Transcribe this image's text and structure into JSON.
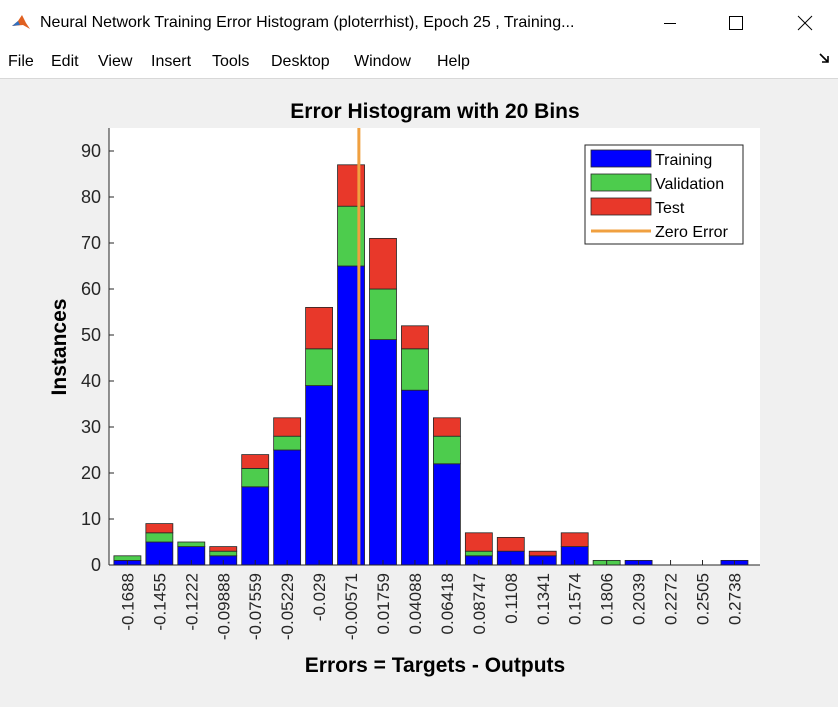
{
  "window": {
    "title": "Neural Network Training Error Histogram (ploterrhist), Epoch 25 , Training..."
  },
  "menu": {
    "items": [
      "File",
      "Edit",
      "View",
      "Insert",
      "Tools",
      "Desktop",
      "Window",
      "Help"
    ]
  },
  "colors": {
    "training": "#0000ff",
    "validation": "#4dcc4d",
    "test": "#e8382a",
    "zero_error": "#f0a040"
  },
  "chart_data": {
    "type": "bar",
    "stacked": true,
    "title": "Error Histogram with 20 Bins",
    "xlabel": "Errors = Targets - Outputs",
    "ylabel": "Instances",
    "ylim": [
      0,
      95
    ],
    "yticks": [
      0,
      10,
      20,
      30,
      40,
      50,
      60,
      70,
      80,
      90
    ],
    "categories": [
      "-0.1688",
      "-0.1455",
      "-0.1222",
      "-0.09888",
      "-0.07559",
      "-0.05229",
      "-0.029",
      "-0.00571",
      "0.01759",
      "0.04088",
      "0.06418",
      "0.08747",
      "0.1108",
      "0.1341",
      "0.1574",
      "0.1806",
      "0.2039",
      "0.2272",
      "0.2505",
      "0.2738"
    ],
    "series": [
      {
        "name": "Training",
        "values": [
          1,
          5,
          4,
          2,
          17,
          25,
          39,
          65,
          49,
          38,
          22,
          2,
          3,
          2,
          4,
          0,
          1,
          0,
          0,
          1
        ]
      },
      {
        "name": "Validation",
        "values": [
          1,
          2,
          1,
          1,
          4,
          3,
          8,
          13,
          11,
          9,
          6,
          1,
          0,
          0,
          0,
          1,
          0,
          0,
          0,
          0
        ]
      },
      {
        "name": "Test",
        "values": [
          0,
          2,
          0,
          1,
          3,
          4,
          9,
          9,
          11,
          5,
          4,
          4,
          3,
          1,
          3,
          0,
          0,
          0,
          0,
          0
        ]
      }
    ],
    "zero_error": {
      "name": "Zero Error",
      "x": 0
    },
    "legend_position": "top-right",
    "grid": false
  }
}
